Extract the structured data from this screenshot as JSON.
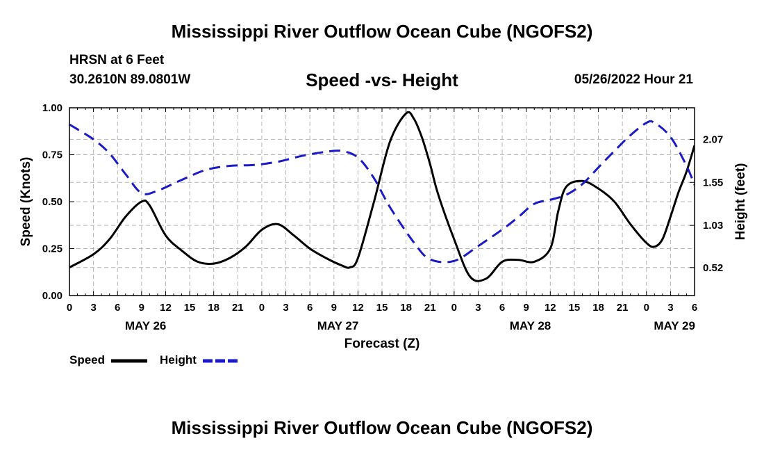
{
  "header": {
    "title": "Mississippi River Outflow Ocean Cube (NGOFS2)",
    "station": "HRSN at 6 Feet",
    "coords": "30.2610N  89.0801W",
    "subtitle": "Speed -vs- Height",
    "datetime": "05/26/2022 Hour 21"
  },
  "footer": {
    "title": "Mississippi River Outflow Ocean Cube (NGOFS2)"
  },
  "legend": {
    "speed_label": "Speed",
    "height_label": "Height"
  },
  "colors": {
    "speed": "#000000",
    "height": "#1a1ac8",
    "grid": "#b4b4b4"
  },
  "chart_data": {
    "type": "line",
    "xlabel": "Forecast (Z)",
    "ylabel_left": "Speed (Knots)",
    "ylabel_right": "Height (feet)",
    "x_range_hours": [
      0,
      78
    ],
    "x_tick_labels": [
      "0",
      "3",
      "6",
      "9",
      "12",
      "15",
      "18",
      "21",
      "0",
      "3",
      "6",
      "9",
      "12",
      "15",
      "18",
      "21",
      "0",
      "3",
      "6",
      "9",
      "12",
      "15",
      "18",
      "21",
      "0",
      "3",
      "6"
    ],
    "day_labels": [
      {
        "label": "MAY 26",
        "hour": 9.5
      },
      {
        "label": "MAY 27",
        "hour": 33.5
      },
      {
        "label": "MAY 28",
        "hour": 57.5
      },
      {
        "label": "MAY 29",
        "hour": 75.5
      }
    ],
    "y_left": {
      "range": [
        0,
        1.0
      ],
      "ticks": [
        0,
        0.25,
        0.5,
        0.75,
        1.0
      ],
      "tick_labels": [
        "0.00",
        "0.25",
        "0.50",
        "0.75",
        "1.00"
      ]
    },
    "y_right": {
      "range": [
        0.182,
        2.452
      ],
      "ticks": [
        0.52,
        1.03,
        1.55,
        2.07
      ],
      "tick_labels": [
        "0.52",
        "1.03",
        "1.55",
        "2.07"
      ]
    },
    "grid": true,
    "legend_position": "bottom-left",
    "series": [
      {
        "name": "Speed",
        "axis": "left",
        "style": "solid",
        "x": [
          0,
          3,
          5,
          7,
          9,
          10,
          12,
          14,
          16,
          18,
          20,
          22,
          24,
          26,
          28,
          30,
          32,
          34,
          35,
          36,
          38,
          40,
          42,
          43,
          44,
          45,
          46,
          48,
          50,
          52,
          54,
          56,
          58,
          60,
          61,
          62,
          64,
          66,
          68,
          70,
          72,
          73,
          74,
          75,
          76,
          77,
          78
        ],
        "y": [
          0.15,
          0.22,
          0.3,
          0.42,
          0.5,
          0.48,
          0.32,
          0.24,
          0.18,
          0.17,
          0.2,
          0.26,
          0.35,
          0.38,
          0.32,
          0.25,
          0.2,
          0.16,
          0.15,
          0.2,
          0.5,
          0.82,
          0.97,
          0.94,
          0.84,
          0.7,
          0.54,
          0.3,
          0.1,
          0.09,
          0.18,
          0.19,
          0.18,
          0.25,
          0.45,
          0.58,
          0.61,
          0.57,
          0.5,
          0.38,
          0.28,
          0.26,
          0.3,
          0.42,
          0.55,
          0.66,
          0.8
        ]
      },
      {
        "name": "Height",
        "axis": "right",
        "style": "dashed",
        "x": [
          0,
          3,
          5,
          7,
          9,
          11,
          14,
          17,
          20,
          23,
          26,
          29,
          32,
          34,
          36,
          38,
          40,
          43,
          45,
          48,
          51,
          54,
          56,
          58,
          60,
          62,
          64,
          66,
          68,
          70,
          72,
          73,
          75,
          77,
          78
        ],
        "y": [
          2.25,
          2.07,
          1.9,
          1.65,
          1.42,
          1.45,
          1.58,
          1.7,
          1.75,
          1.76,
          1.8,
          1.87,
          1.92,
          1.93,
          1.85,
          1.6,
          1.25,
          0.82,
          0.62,
          0.6,
          0.78,
          0.98,
          1.13,
          1.29,
          1.34,
          1.4,
          1.53,
          1.73,
          1.93,
          2.12,
          2.27,
          2.27,
          2.1,
          1.75,
          1.52
        ]
      }
    ]
  }
}
